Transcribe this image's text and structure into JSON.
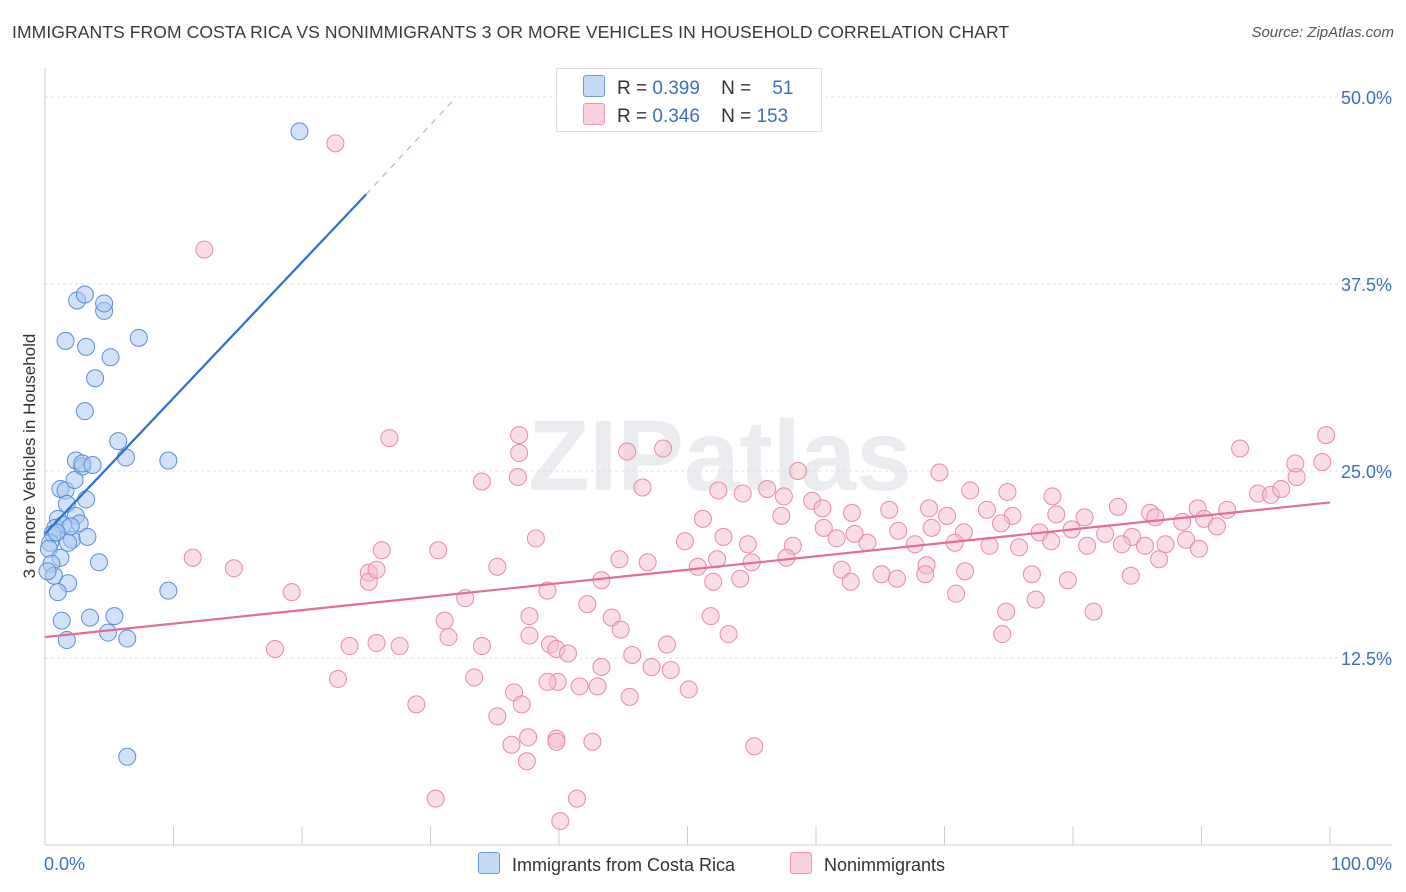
{
  "title": "IMMIGRANTS FROM COSTA RICA VS NONIMMIGRANTS 3 OR MORE VEHICLES IN HOUSEHOLD CORRELATION CHART",
  "source": "Source: ZipAtlas.com",
  "watermark": "ZIPatlas",
  "legend": {
    "rows": [
      {
        "r_label": "R =",
        "r_value": "0.399",
        "n_label": "N =",
        "n_value": "51",
        "color": "#a9c8f2"
      },
      {
        "r_label": "R =",
        "r_value": "0.346",
        "n_label": "N =",
        "n_value": "153",
        "color": "#f7bccd"
      }
    ]
  },
  "bottom_legend": [
    "Immigrants from Costa Rica",
    "Nonimmigrants"
  ],
  "chart_data": {
    "type": "scatter",
    "ylabel": "3 or more Vehicles in Household",
    "xlim": [
      0,
      100
    ],
    "ylim": [
      0,
      50
    ],
    "x_tick_labels": [
      "0.0%",
      "100.0%"
    ],
    "y_tick_labels": [
      "12.5%",
      "25.0%",
      "37.5%",
      "50.0%"
    ],
    "y_ticks": [
      12.5,
      25,
      37.5,
      50
    ],
    "colors": {
      "blue_fill": "#a9c8f2",
      "blue_stroke": "#5b8fd6",
      "blue_line": "#2a6fd6",
      "pink_fill": "#f7bccd",
      "pink_stroke": "#e88aa6",
      "pink_line": "#e36d97",
      "tick_label": "#3b6fc4"
    },
    "series": [
      {
        "name": "Immigrants from Costa Rica",
        "trend": {
          "x": [
            0,
            25
          ],
          "y": [
            20.8,
            43.5
          ],
          "dash_to": [
            32,
            50
          ]
        },
        "points": [
          [
            19.8,
            47.7
          ],
          [
            2.5,
            36.4
          ],
          [
            3.1,
            36.8
          ],
          [
            4.6,
            35.7
          ],
          [
            4.6,
            36.2
          ],
          [
            7.3,
            33.9
          ],
          [
            1.6,
            33.7
          ],
          [
            3.2,
            33.3
          ],
          [
            5.1,
            32.6
          ],
          [
            3.9,
            31.2
          ],
          [
            3.1,
            29.0
          ],
          [
            5.7,
            27.0
          ],
          [
            6.3,
            25.9
          ],
          [
            9.6,
            25.7
          ],
          [
            2.4,
            25.7
          ],
          [
            2.9,
            25.3
          ],
          [
            2.9,
            25.5
          ],
          [
            3.7,
            25.4
          ],
          [
            1.2,
            23.8
          ],
          [
            1.6,
            23.7
          ],
          [
            2.3,
            24.4
          ],
          [
            3.2,
            23.1
          ],
          [
            1.7,
            22.8
          ],
          [
            2.4,
            22.0
          ],
          [
            1.0,
            21.8
          ],
          [
            0.8,
            21.2
          ],
          [
            2.7,
            21.5
          ],
          [
            1.4,
            21.4
          ],
          [
            0.6,
            20.8
          ],
          [
            2.1,
            20.4
          ],
          [
            3.3,
            20.6
          ],
          [
            1.8,
            20.2
          ],
          [
            0.4,
            20.2
          ],
          [
            0.3,
            19.8
          ],
          [
            1.2,
            19.2
          ],
          [
            0.5,
            18.8
          ],
          [
            0.7,
            18.0
          ],
          [
            4.2,
            18.9
          ],
          [
            0.2,
            18.3
          ],
          [
            1.8,
            17.5
          ],
          [
            1.0,
            16.9
          ],
          [
            9.6,
            17.0
          ],
          [
            1.3,
            15.0
          ],
          [
            3.5,
            15.2
          ],
          [
            5.4,
            15.3
          ],
          [
            1.7,
            13.7
          ],
          [
            4.9,
            14.2
          ],
          [
            6.4,
            13.8
          ],
          [
            6.4,
            5.9
          ],
          [
            2.0,
            21.3
          ],
          [
            0.9,
            20.9
          ]
        ]
      },
      {
        "name": "Nonimmigrants",
        "trend": {
          "x": [
            0,
            100
          ],
          "y": [
            13.9,
            22.9
          ]
        },
        "points": [
          [
            22.6,
            46.9
          ],
          [
            12.4,
            39.8
          ],
          [
            26.8,
            27.2
          ],
          [
            36.9,
            27.4
          ],
          [
            36.9,
            26.2
          ],
          [
            48.1,
            26.5
          ],
          [
            58.6,
            25.0
          ],
          [
            69.6,
            24.9
          ],
          [
            72.0,
            23.7
          ],
          [
            74.9,
            23.6
          ],
          [
            78.4,
            23.3
          ],
          [
            93.0,
            26.5
          ],
          [
            97.4,
            24.6
          ],
          [
            97.3,
            25.5
          ],
          [
            99.7,
            27.4
          ],
          [
            45.3,
            26.3
          ],
          [
            36.8,
            24.6
          ],
          [
            34.0,
            24.3
          ],
          [
            46.5,
            23.9
          ],
          [
            52.4,
            23.7
          ],
          [
            54.3,
            23.5
          ],
          [
            56.2,
            23.8
          ],
          [
            57.5,
            23.3
          ],
          [
            59.7,
            23.0
          ],
          [
            60.5,
            22.5
          ],
          [
            62.8,
            22.2
          ],
          [
            65.7,
            22.4
          ],
          [
            68.8,
            22.5
          ],
          [
            70.2,
            22.0
          ],
          [
            73.3,
            22.4
          ],
          [
            75.3,
            22.0
          ],
          [
            78.7,
            22.1
          ],
          [
            80.9,
            21.9
          ],
          [
            83.5,
            22.6
          ],
          [
            86.0,
            22.2
          ],
          [
            89.7,
            22.5
          ],
          [
            92.0,
            22.4
          ],
          [
            94.4,
            23.5
          ],
          [
            95.4,
            23.4
          ],
          [
            96.2,
            23.8
          ],
          [
            99.4,
            25.6
          ],
          [
            86.4,
            21.9
          ],
          [
            88.5,
            21.6
          ],
          [
            90.2,
            21.8
          ],
          [
            91.2,
            21.3
          ],
          [
            51.2,
            21.8
          ],
          [
            57.3,
            22.0
          ],
          [
            60.6,
            21.2
          ],
          [
            63.0,
            20.8
          ],
          [
            66.4,
            21.0
          ],
          [
            69.0,
            21.2
          ],
          [
            71.5,
            20.9
          ],
          [
            74.4,
            21.5
          ],
          [
            77.4,
            20.9
          ],
          [
            79.9,
            21.1
          ],
          [
            82.5,
            20.8
          ],
          [
            84.6,
            20.6
          ],
          [
            38.2,
            20.5
          ],
          [
            49.8,
            20.3
          ],
          [
            52.8,
            20.6
          ],
          [
            54.7,
            20.1
          ],
          [
            58.2,
            20.0
          ],
          [
            61.6,
            20.5
          ],
          [
            64.0,
            20.2
          ],
          [
            67.7,
            20.1
          ],
          [
            70.8,
            20.2
          ],
          [
            73.5,
            20.0
          ],
          [
            75.8,
            19.9
          ],
          [
            78.3,
            20.3
          ],
          [
            81.1,
            20.0
          ],
          [
            83.8,
            20.1
          ],
          [
            85.6,
            20.0
          ],
          [
            87.2,
            20.1
          ],
          [
            88.8,
            20.4
          ],
          [
            89.8,
            19.8
          ],
          [
            11.5,
            19.2
          ],
          [
            26.2,
            19.7
          ],
          [
            30.6,
            19.7
          ],
          [
            35.2,
            18.6
          ],
          [
            39.1,
            17.0
          ],
          [
            44.7,
            19.1
          ],
          [
            46.9,
            18.9
          ],
          [
            50.8,
            18.6
          ],
          [
            52.3,
            19.1
          ],
          [
            55.0,
            18.9
          ],
          [
            57.7,
            19.2
          ],
          [
            62.0,
            18.4
          ],
          [
            65.1,
            18.1
          ],
          [
            66.3,
            17.8
          ],
          [
            68.6,
            18.7
          ],
          [
            71.6,
            18.3
          ],
          [
            76.8,
            18.1
          ],
          [
            79.6,
            17.7
          ],
          [
            84.5,
            18.0
          ],
          [
            86.7,
            19.1
          ],
          [
            25.2,
            18.2
          ],
          [
            14.7,
            18.5
          ],
          [
            25.2,
            17.6
          ],
          [
            43.3,
            17.7
          ],
          [
            52.0,
            17.6
          ],
          [
            54.1,
            17.8
          ],
          [
            62.7,
            17.6
          ],
          [
            68.5,
            18.1
          ],
          [
            19.2,
            16.9
          ],
          [
            25.8,
            18.4
          ],
          [
            32.7,
            16.5
          ],
          [
            42.2,
            16.1
          ],
          [
            31.1,
            15.0
          ],
          [
            37.7,
            15.3
          ],
          [
            44.1,
            15.2
          ],
          [
            44.8,
            14.4
          ],
          [
            51.8,
            15.3
          ],
          [
            31.4,
            13.9
          ],
          [
            37.7,
            14.0
          ],
          [
            39.3,
            13.4
          ],
          [
            34.0,
            13.3
          ],
          [
            39.8,
            13.1
          ],
          [
            53.2,
            14.1
          ],
          [
            40.7,
            12.8
          ],
          [
            23.7,
            13.3
          ],
          [
            25.8,
            13.5
          ],
          [
            27.6,
            13.3
          ],
          [
            48.4,
            13.4
          ],
          [
            43.3,
            11.9
          ],
          [
            47.2,
            11.9
          ],
          [
            17.9,
            13.1
          ],
          [
            22.8,
            11.1
          ],
          [
            33.4,
            11.2
          ],
          [
            45.7,
            12.7
          ],
          [
            48.7,
            11.7
          ],
          [
            39.9,
            10.9
          ],
          [
            41.6,
            10.6
          ],
          [
            39.1,
            10.9
          ],
          [
            43.0,
            10.6
          ],
          [
            45.5,
            9.9
          ],
          [
            36.5,
            10.2
          ],
          [
            37.1,
            9.4
          ],
          [
            50.1,
            10.4
          ],
          [
            28.9,
            9.4
          ],
          [
            35.2,
            8.6
          ],
          [
            37.6,
            7.2
          ],
          [
            39.8,
            7.1
          ],
          [
            42.6,
            6.9
          ],
          [
            36.3,
            6.7
          ],
          [
            39.8,
            6.9
          ],
          [
            55.2,
            6.6
          ],
          [
            37.5,
            5.6
          ],
          [
            30.4,
            3.1
          ],
          [
            41.4,
            3.1
          ],
          [
            40.1,
            1.6
          ],
          [
            81.6,
            15.6
          ],
          [
            77.1,
            16.4
          ],
          [
            70.9,
            16.8
          ],
          [
            74.8,
            15.6
          ],
          [
            74.5,
            14.1
          ]
        ]
      }
    ]
  }
}
